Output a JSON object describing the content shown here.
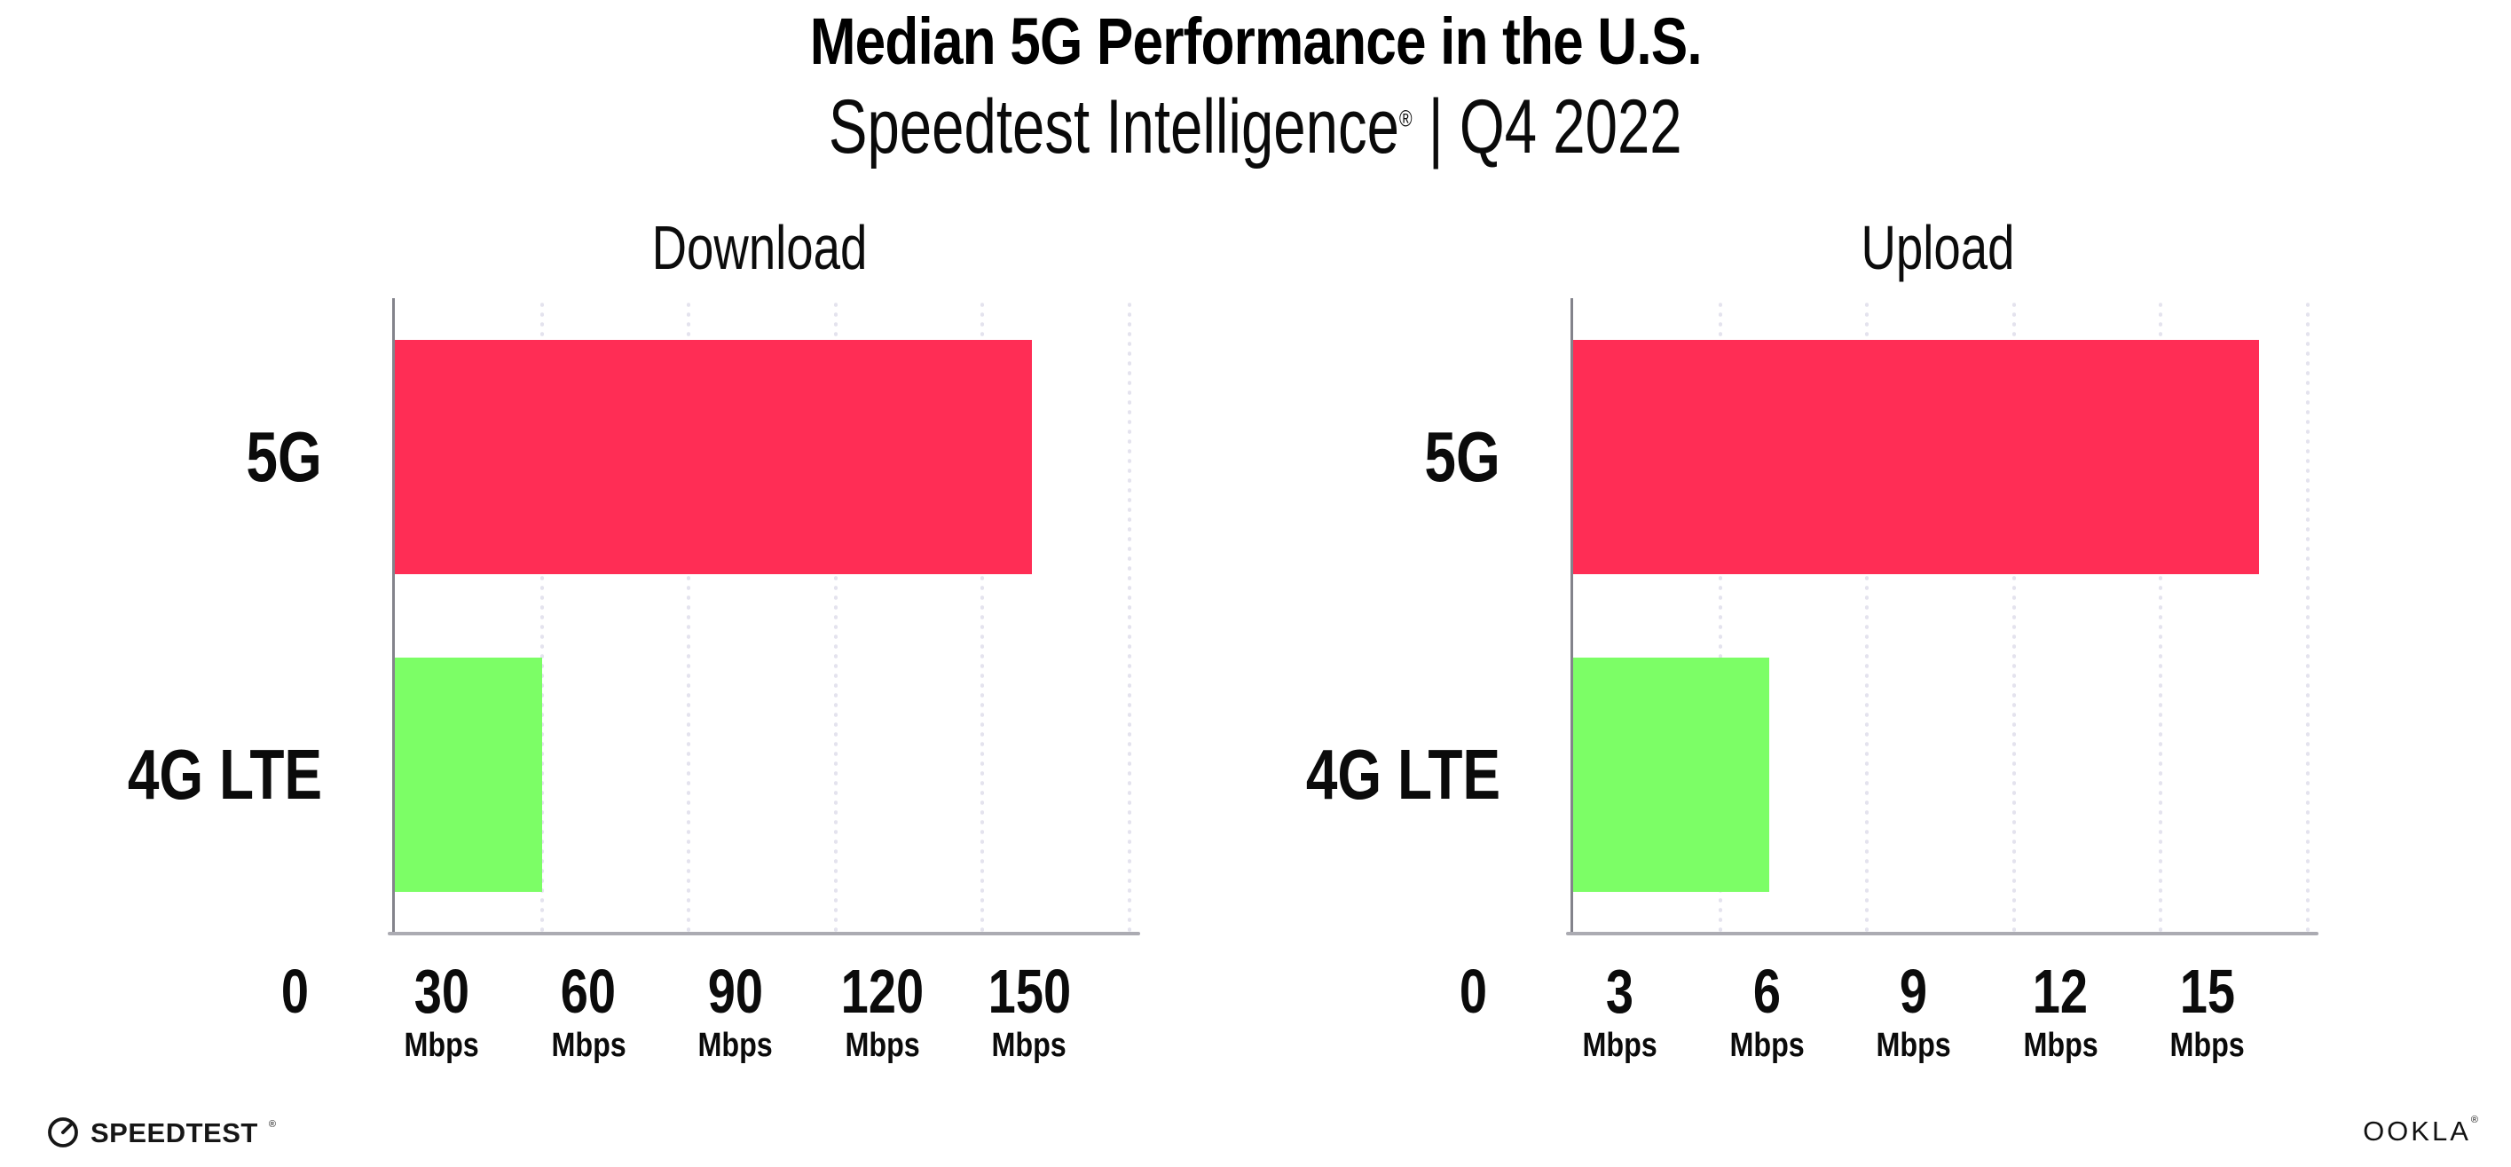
{
  "header": {
    "title": "Median 5G Performance in the U.S.",
    "subtitle_brand": "Speedtest Intelligence",
    "subtitle_reg": "®",
    "subtitle_rest": " | Q4 2022"
  },
  "chart_data": [
    {
      "type": "bar",
      "orientation": "horizontal",
      "title": "Download",
      "categories": [
        "5G",
        "4G LTE"
      ],
      "values": [
        130,
        30
      ],
      "unit": "Mbps",
      "xlim": [
        0,
        150
      ],
      "xticks": [
        0,
        30,
        60,
        90,
        120,
        150
      ],
      "bar_colors": [
        "#FF2D55",
        "#7CFE66"
      ],
      "grid": "vertical-dotted",
      "legend": "none"
    },
    {
      "type": "bar",
      "orientation": "horizontal",
      "title": "Upload",
      "categories": [
        "5G",
        "4G LTE"
      ],
      "values": [
        14,
        4
      ],
      "unit": "Mbps",
      "xlim": [
        0,
        15
      ],
      "xticks": [
        0,
        3,
        6,
        9,
        12,
        15
      ],
      "bar_colors": [
        "#FF2D55",
        "#7CFE66"
      ],
      "grid": "vertical-dotted",
      "legend": "none"
    }
  ],
  "footer": {
    "speedtest_label": "SPEEDTEST",
    "speedtest_reg": "®",
    "ookla_label": "OOKLA",
    "ookla_reg": "®"
  },
  "colors": {
    "bar_5g": "#FF2D55",
    "bar_4g_lte": "#7CFE66",
    "gridline": "#E4E3EE",
    "axis_line": "#ABABB2",
    "axis_spine": "#83838B",
    "text": "#0B0B0B"
  }
}
